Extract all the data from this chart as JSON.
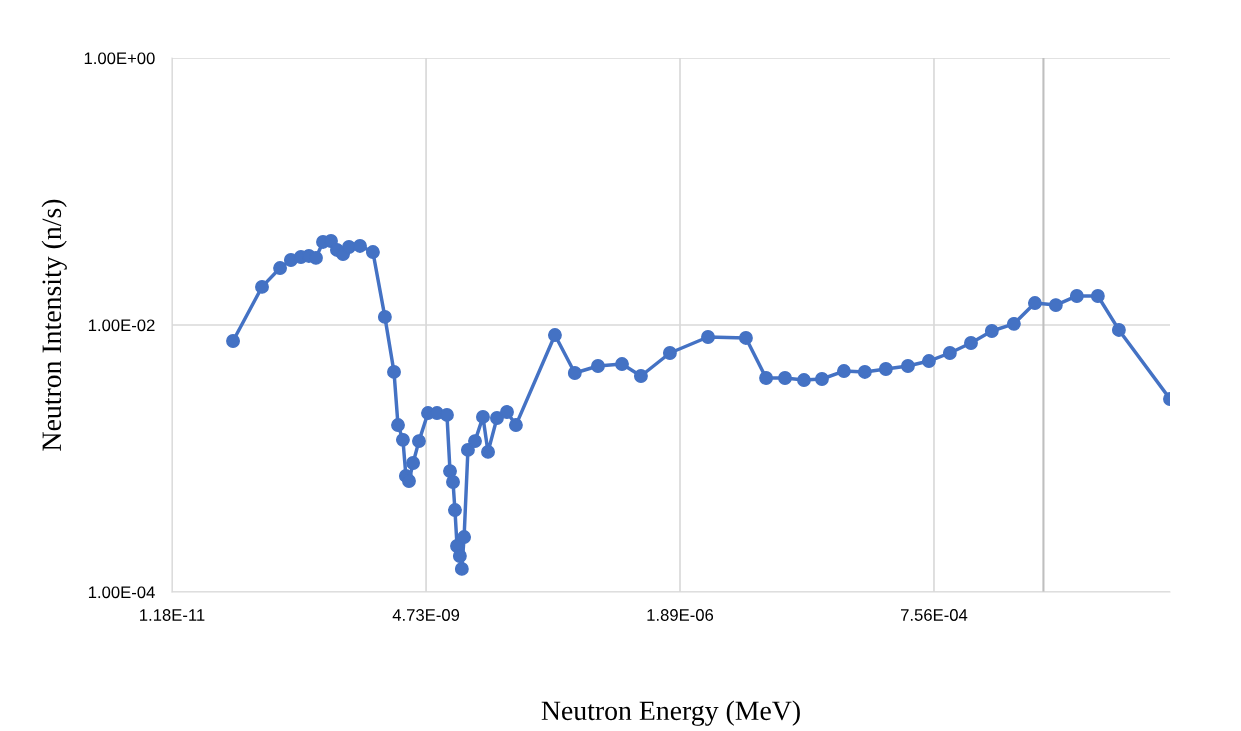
{
  "chart_data": {
    "type": "line",
    "xlabel": "Neutron Energy (MeV)",
    "ylabel": "Neutron Intensity (n/s)",
    "log": "xy",
    "grid": true,
    "marker": "circle",
    "line_style": "solid",
    "xlim": [
      1.18e-11,
      0.198
    ],
    "ylim": [
      0.0001,
      1
    ],
    "xticks": [
      {
        "value": 1.18e-11,
        "label": "1.18E-11"
      },
      {
        "value": 4.73e-09,
        "label": "4.73E-09"
      },
      {
        "value": 1.89e-06,
        "label": "1.89E-06"
      },
      {
        "value": 0.000756,
        "label": "7.56E-04"
      }
    ],
    "yticks": [
      {
        "value": 0.0001,
        "label": "1.00E-04"
      },
      {
        "value": 0.01,
        "label": "1.00E-02"
      },
      {
        "value": 1,
        "label": "1.00E+00"
      }
    ],
    "ref_lines": [
      {
        "axis": "x",
        "value": 0.01,
        "label": null,
        "color": "#bfbfbf"
      }
    ],
    "series": [
      {
        "color": "#4472c4",
        "x": [
          4.98e-11,
          9.86e-11,
          1.51e-10,
          1.95e-10,
          2.47e-10,
          2.98e-10,
          3.52e-10,
          4.16e-10,
          5.02e-10,
          5.78e-10,
          6.67e-10,
          7.67e-10,
          9.95e-10,
          1.35e-09,
          1.79e-09,
          2.22e-09,
          2.44e-09,
          2.74e-09,
          2.94e-09,
          3.16e-09,
          3.48e-09,
          4e-09,
          4.95e-09,
          6.12e-09,
          7.74e-09,
          8.32e-09,
          8.93e-09,
          9.35e-09,
          9.82e-09,
          1.05e-08,
          1.1e-08,
          1.16e-08,
          1.27e-08,
          1.5e-08,
          1.81e-08,
          2.04e-08,
          2.52e-08,
          3.19e-08,
          3.94e-08,
          9.89e-08,
          1.58e-07,
          2.73e-07,
          4.81e-07,
          7.52e-07,
          1.49e-06,
          3.66e-06,
          8.95e-06,
          1.44e-05,
          2.25e-05,
          3.52e-05,
          5.38e-05,
          9.04e-05,
          0.000148,
          0.000243,
          0.000409,
          0.000671,
          0.0011,
          0.00181,
          0.00296,
          0.00498,
          0.00818,
          0.0134,
          0.022,
          0.0361,
          0.0593,
          0.198
        ],
        "values": [
          0.00759,
          0.0193,
          0.0267,
          0.0307,
          0.0323,
          0.0329,
          0.0318,
          0.0419,
          0.0426,
          0.0365,
          0.034,
          0.0384,
          0.0391,
          0.0352,
          0.0115,
          0.00445,
          0.00178,
          0.00138,
          0.00074,
          0.000678,
          0.000925,
          0.00135,
          0.00219,
          0.00219,
          0.00212,
          0.000805,
          0.000667,
          0.000411,
          0.000221,
          0.000186,
          0.000149,
          0.000258,
          0.00116,
          0.00135,
          0.00205,
          0.00112,
          0.00201,
          0.00223,
          0.00178,
          0.00841,
          0.00437,
          0.00493,
          0.0051,
          0.00415,
          0.00617,
          0.00813,
          0.008,
          0.00401,
          0.00401,
          0.00387,
          0.00394,
          0.00452,
          0.00445,
          0.00468,
          0.00493,
          0.00537,
          0.00617,
          0.00733,
          0.00902,
          0.0102,
          0.0146,
          0.0141,
          0.0165,
          0.0165,
          0.00918,
          0.00279
        ]
      }
    ]
  }
}
